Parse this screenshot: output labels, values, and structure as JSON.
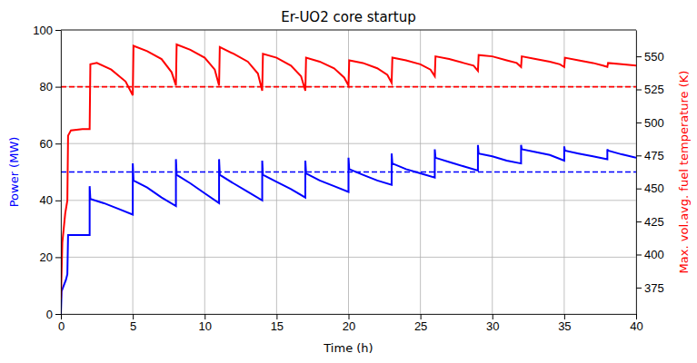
{
  "chart_data": {
    "type": "line",
    "title": "Er-UO2 core startup",
    "x_label": "Time (h)",
    "y_label": "Power (MW)",
    "y2_label": "Max. vol.avg. fuel temperature (K)",
    "xlim": [
      0,
      40
    ],
    "xticks": [
      0,
      5,
      10,
      15,
      20,
      25,
      30,
      35,
      40
    ],
    "ylim": [
      0,
      100
    ],
    "yticks": [
      0,
      20,
      40,
      60,
      80,
      100
    ],
    "y2lim": [
      355,
      570
    ],
    "y2ticks": [
      375,
      400,
      425,
      450,
      475,
      500,
      525,
      550
    ],
    "grid": true,
    "series": [
      {
        "color": "#0000ff",
        "axis": "y",
        "line_style": "solid",
        "x": [
          0,
          0.05,
          0.2,
          0.35,
          0.45,
          0.5,
          1,
          2,
          2,
          2.05,
          3,
          4,
          5,
          5,
          5.05,
          6,
          7,
          8,
          8,
          8.05,
          9,
          10,
          11,
          11,
          11.05,
          12,
          13,
          14,
          14,
          14.05,
          15,
          16,
          17,
          17,
          17.05,
          18,
          19,
          20,
          20,
          20.05,
          21,
          22,
          23,
          23,
          23.05,
          24,
          25,
          26,
          26,
          26.05,
          27,
          28,
          29,
          29,
          29.05,
          30,
          31,
          32,
          32,
          32.05,
          33,
          34,
          35,
          35,
          35.05,
          36,
          37,
          38,
          38,
          38.05,
          39,
          40
        ],
        "values": [
          0,
          8,
          10,
          12,
          14,
          27.8,
          27.8,
          27.8,
          45,
          40.5,
          39,
          37,
          35,
          53,
          47,
          44.5,
          41,
          38,
          54.5,
          49,
          46,
          42.5,
          39,
          54.5,
          49,
          46,
          43,
          40,
          54,
          49,
          46.5,
          44,
          41,
          54,
          49.5,
          47,
          45,
          43,
          55,
          51,
          49,
          47,
          45.5,
          56.5,
          53,
          51,
          49.5,
          48,
          58,
          55,
          53.5,
          52,
          50.5,
          59.5,
          56.5,
          55.5,
          54,
          53,
          59.5,
          58,
          57,
          56,
          54,
          59,
          57.5,
          56.5,
          55.5,
          54.5,
          58,
          57.5,
          56.2,
          55
        ]
      },
      {
        "color": "#ff0000",
        "axis": "y2",
        "line_style": "solid",
        "x": [
          0,
          0.1,
          0.3,
          0.45,
          0.5,
          0.7,
          1.5,
          2,
          2.05,
          2.5,
          3.5,
          4.5,
          5,
          5.05,
          6,
          7,
          7.7,
          8,
          8.05,
          9,
          10,
          10.7,
          11,
          11.05,
          12,
          13,
          13.7,
          14,
          14.05,
          15,
          16,
          16.7,
          17,
          17.05,
          18,
          19,
          19.7,
          20,
          20.05,
          21,
          22,
          22.7,
          23,
          23.05,
          24,
          25,
          25.7,
          26,
          26.05,
          27,
          28,
          28.7,
          29,
          29.05,
          30,
          31,
          31.7,
          32,
          32.05,
          33,
          34,
          34.7,
          35,
          35.05,
          36,
          37,
          37.7,
          38,
          38.05,
          39,
          40
        ],
        "values": [
          366,
          409,
          431,
          441,
          490,
          494,
          495,
          495,
          544,
          545,
          540,
          531,
          520.6,
          558,
          554,
          548,
          538,
          528,
          559,
          555,
          549,
          540,
          528,
          557,
          552,
          546,
          537,
          524,
          552,
          549,
          543,
          535,
          524,
          549,
          546,
          541,
          534,
          528,
          547,
          545,
          541,
          536,
          530,
          549,
          547,
          544,
          540,
          535,
          550,
          548,
          545,
          543,
          539,
          551,
          550,
          547,
          545,
          542,
          550,
          548,
          546,
          544,
          542,
          549,
          547,
          545,
          543,
          542,
          545,
          544,
          543
        ]
      },
      {
        "color": "#0000ff",
        "axis": "y",
        "line_style": "dashed",
        "x": [
          0,
          40
        ],
        "values": [
          50,
          50
        ]
      },
      {
        "color": "#ff0000",
        "axis": "y2",
        "line_style": "dashed",
        "x": [
          0,
          40
        ],
        "values": [
          527,
          527
        ]
      }
    ]
  }
}
